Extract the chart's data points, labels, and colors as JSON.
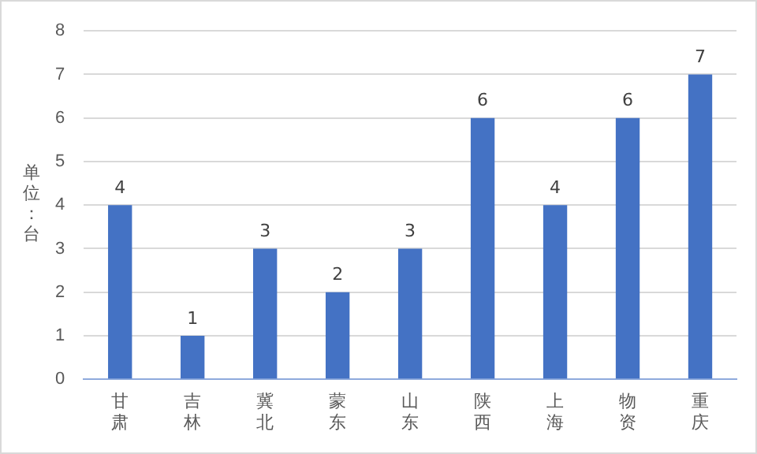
{
  "chart_data": {
    "type": "bar",
    "ylabel": "单位：台",
    "categories": [
      "甘肃",
      "吉林",
      "冀北",
      "蒙东",
      "山东",
      "陕西",
      "上海",
      "物资",
      "重庆"
    ],
    "values": [
      4,
      1,
      3,
      2,
      3,
      6,
      4,
      6,
      7
    ],
    "color": "#4472c4",
    "ylim": [
      0,
      8
    ],
    "yticks": [
      0,
      1,
      2,
      3,
      4,
      5,
      6,
      7,
      8
    ],
    "grid": "y",
    "data_labels": true,
    "legend": false
  }
}
